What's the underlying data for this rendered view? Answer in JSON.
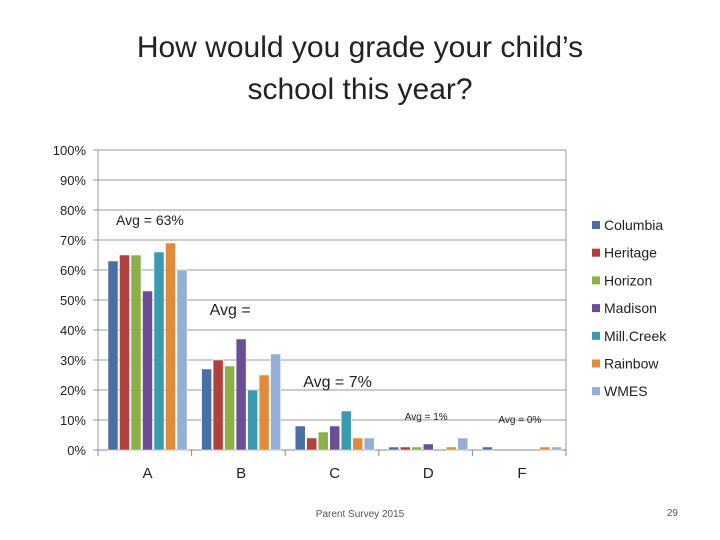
{
  "slide": {
    "title_line1": "How would you grade your child’s",
    "title_line2": "school this year?",
    "footer": "Parent Survey 2015",
    "page_number": "29"
  },
  "chart_data": {
    "type": "bar",
    "categories": [
      "A",
      "B",
      "C",
      "D",
      "F"
    ],
    "ylim": [
      0,
      100
    ],
    "y_ticks": [
      "0%",
      "10%",
      "20%",
      "30%",
      "40%",
      "50%",
      "60%",
      "70%",
      "80%",
      "90%",
      "100%"
    ],
    "legend_position": "right",
    "series": [
      {
        "name": "Columbia",
        "color": "#4a6fa5",
        "values": [
          63,
          27,
          8,
          1,
          1
        ]
      },
      {
        "name": "Heritage",
        "color": "#b0413e",
        "values": [
          65,
          30,
          4,
          1,
          0
        ]
      },
      {
        "name": "Horizon",
        "color": "#8caf4a",
        "values": [
          65,
          28,
          6,
          1,
          0
        ]
      },
      {
        "name": "Madison",
        "color": "#6b4f96",
        "values": [
          53,
          37,
          8,
          2,
          0
        ]
      },
      {
        "name": "Mill.Creek",
        "color": "#3a9ab0",
        "values": [
          66,
          20,
          13,
          0,
          0
        ]
      },
      {
        "name": "Rainbow",
        "color": "#e08a3c",
        "values": [
          69,
          25,
          4,
          1,
          1
        ]
      },
      {
        "name": "WMES",
        "color": "#94aed6",
        "values": [
          60,
          32,
          4,
          4,
          1
        ]
      }
    ],
    "annotations": [
      {
        "text": "Avg = 63%",
        "category": "A",
        "y": 75,
        "size": "medium"
      },
      {
        "text": "Avg =",
        "category": "B",
        "y": 45,
        "size": "large"
      },
      {
        "text": "Avg = 7%",
        "category": "C",
        "y": 21,
        "size": "large"
      },
      {
        "text": "Avg = 1%",
        "category": "D",
        "y": 10,
        "size": "small"
      },
      {
        "text": "Avg = 0%",
        "category": "F",
        "y": 9,
        "size": "small"
      }
    ]
  }
}
